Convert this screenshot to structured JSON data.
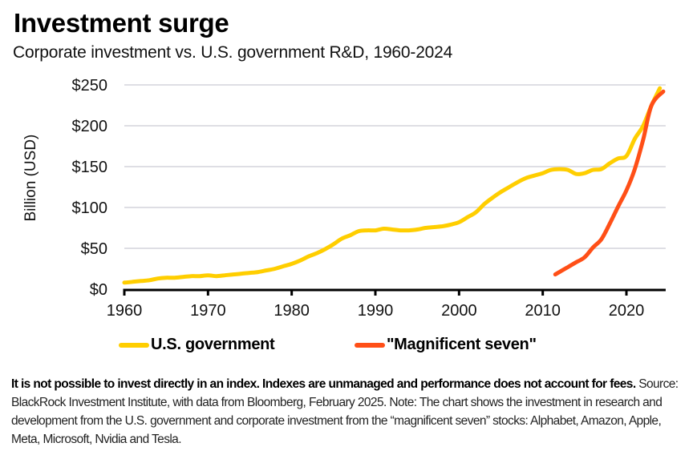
{
  "header": {
    "title": "Investment surge",
    "subtitle": "Corporate investment vs. U.S. government R&D, 1960-2024"
  },
  "chart_data": {
    "type": "line",
    "title": "Investment surge",
    "subtitle": "Corporate investment vs. U.S. government R&D, 1960-2024",
    "xlabel": "",
    "ylabel": "Billion (USD)",
    "xlim": [
      1960,
      2024.5
    ],
    "ylim": [
      0,
      250
    ],
    "x_ticks": [
      1960,
      1970,
      1980,
      1990,
      2000,
      2010,
      2020
    ],
    "x_tick_labels": [
      "1960",
      "1970",
      "1980",
      "1990",
      "2000",
      "2010",
      "2020"
    ],
    "y_ticks": [
      0,
      50,
      100,
      150,
      200,
      250
    ],
    "y_tick_labels": [
      "$0",
      "$50",
      "$100",
      "$150",
      "$200",
      "$250"
    ],
    "grid": "horizontal",
    "legend_position": "bottom",
    "colors": {
      "us_government": "#FFCE00",
      "magnificent_seven": "#FF4F17",
      "axis": "#000000",
      "grid": "#D4D4DC"
    },
    "series": [
      {
        "name": "U.S. government",
        "color": "#FFCE00",
        "x": [
          1960,
          1961,
          1962,
          1963,
          1964,
          1965,
          1966,
          1967,
          1968,
          1969,
          1970,
          1971,
          1972,
          1973,
          1974,
          1975,
          1976,
          1977,
          1978,
          1979,
          1980,
          1981,
          1982,
          1983,
          1984,
          1985,
          1986,
          1987,
          1988,
          1989,
          1990,
          1991,
          1992,
          1993,
          1994,
          1995,
          1996,
          1997,
          1998,
          1999,
          2000,
          2001,
          2002,
          2003,
          2004,
          2005,
          2006,
          2007,
          2008,
          2009,
          2010,
          2011,
          2012,
          2013,
          2014,
          2015,
          2016,
          2017,
          2018,
          2019,
          2020,
          2021,
          2022,
          2023,
          2024
        ],
        "values": [
          8,
          9,
          10,
          11,
          13,
          14,
          14,
          15,
          16,
          16,
          17,
          16,
          17,
          18,
          19,
          20,
          21,
          23,
          25,
          28,
          31,
          35,
          40,
          44,
          49,
          55,
          62,
          66,
          71,
          72,
          72,
          74,
          73,
          72,
          72,
          73,
          75,
          76,
          77,
          79,
          82,
          88,
          94,
          104,
          112,
          119,
          125,
          131,
          136,
          139,
          142,
          146,
          147,
          146,
          141,
          142,
          146,
          147,
          154,
          160,
          163,
          184,
          200,
          225,
          246
        ]
      },
      {
        "name": "\"Magnificent seven\"",
        "color": "#FF4F17",
        "x": [
          2011.5,
          2012,
          2013,
          2014,
          2015,
          2016,
          2017,
          2018,
          2019,
          2020,
          2021,
          2022,
          2023,
          2024.4
        ],
        "values": [
          18,
          21,
          27,
          33,
          39,
          51,
          61,
          80,
          101,
          121,
          147,
          183,
          225,
          242
        ]
      }
    ]
  },
  "legend": {
    "items": [
      {
        "label": "U.S. government",
        "color": "#FFCE00"
      },
      {
        "label": "\"Magnificent seven\"",
        "color": "#FF4F17"
      }
    ]
  },
  "footnote": {
    "disclaimer": "It is not possible to invest directly in an index. Indexes are unmanaged and performance does not account for fees.",
    "source": " Source: BlackRock Investment Institute, with data from Bloomberg, February 2025. Note: The chart shows the investment in research and development from the U.S. government and corporate investment from the “magnificent seven” stocks: Alphabet, Amazon, Apple, Meta, Microsoft, Nvidia and Tesla."
  }
}
